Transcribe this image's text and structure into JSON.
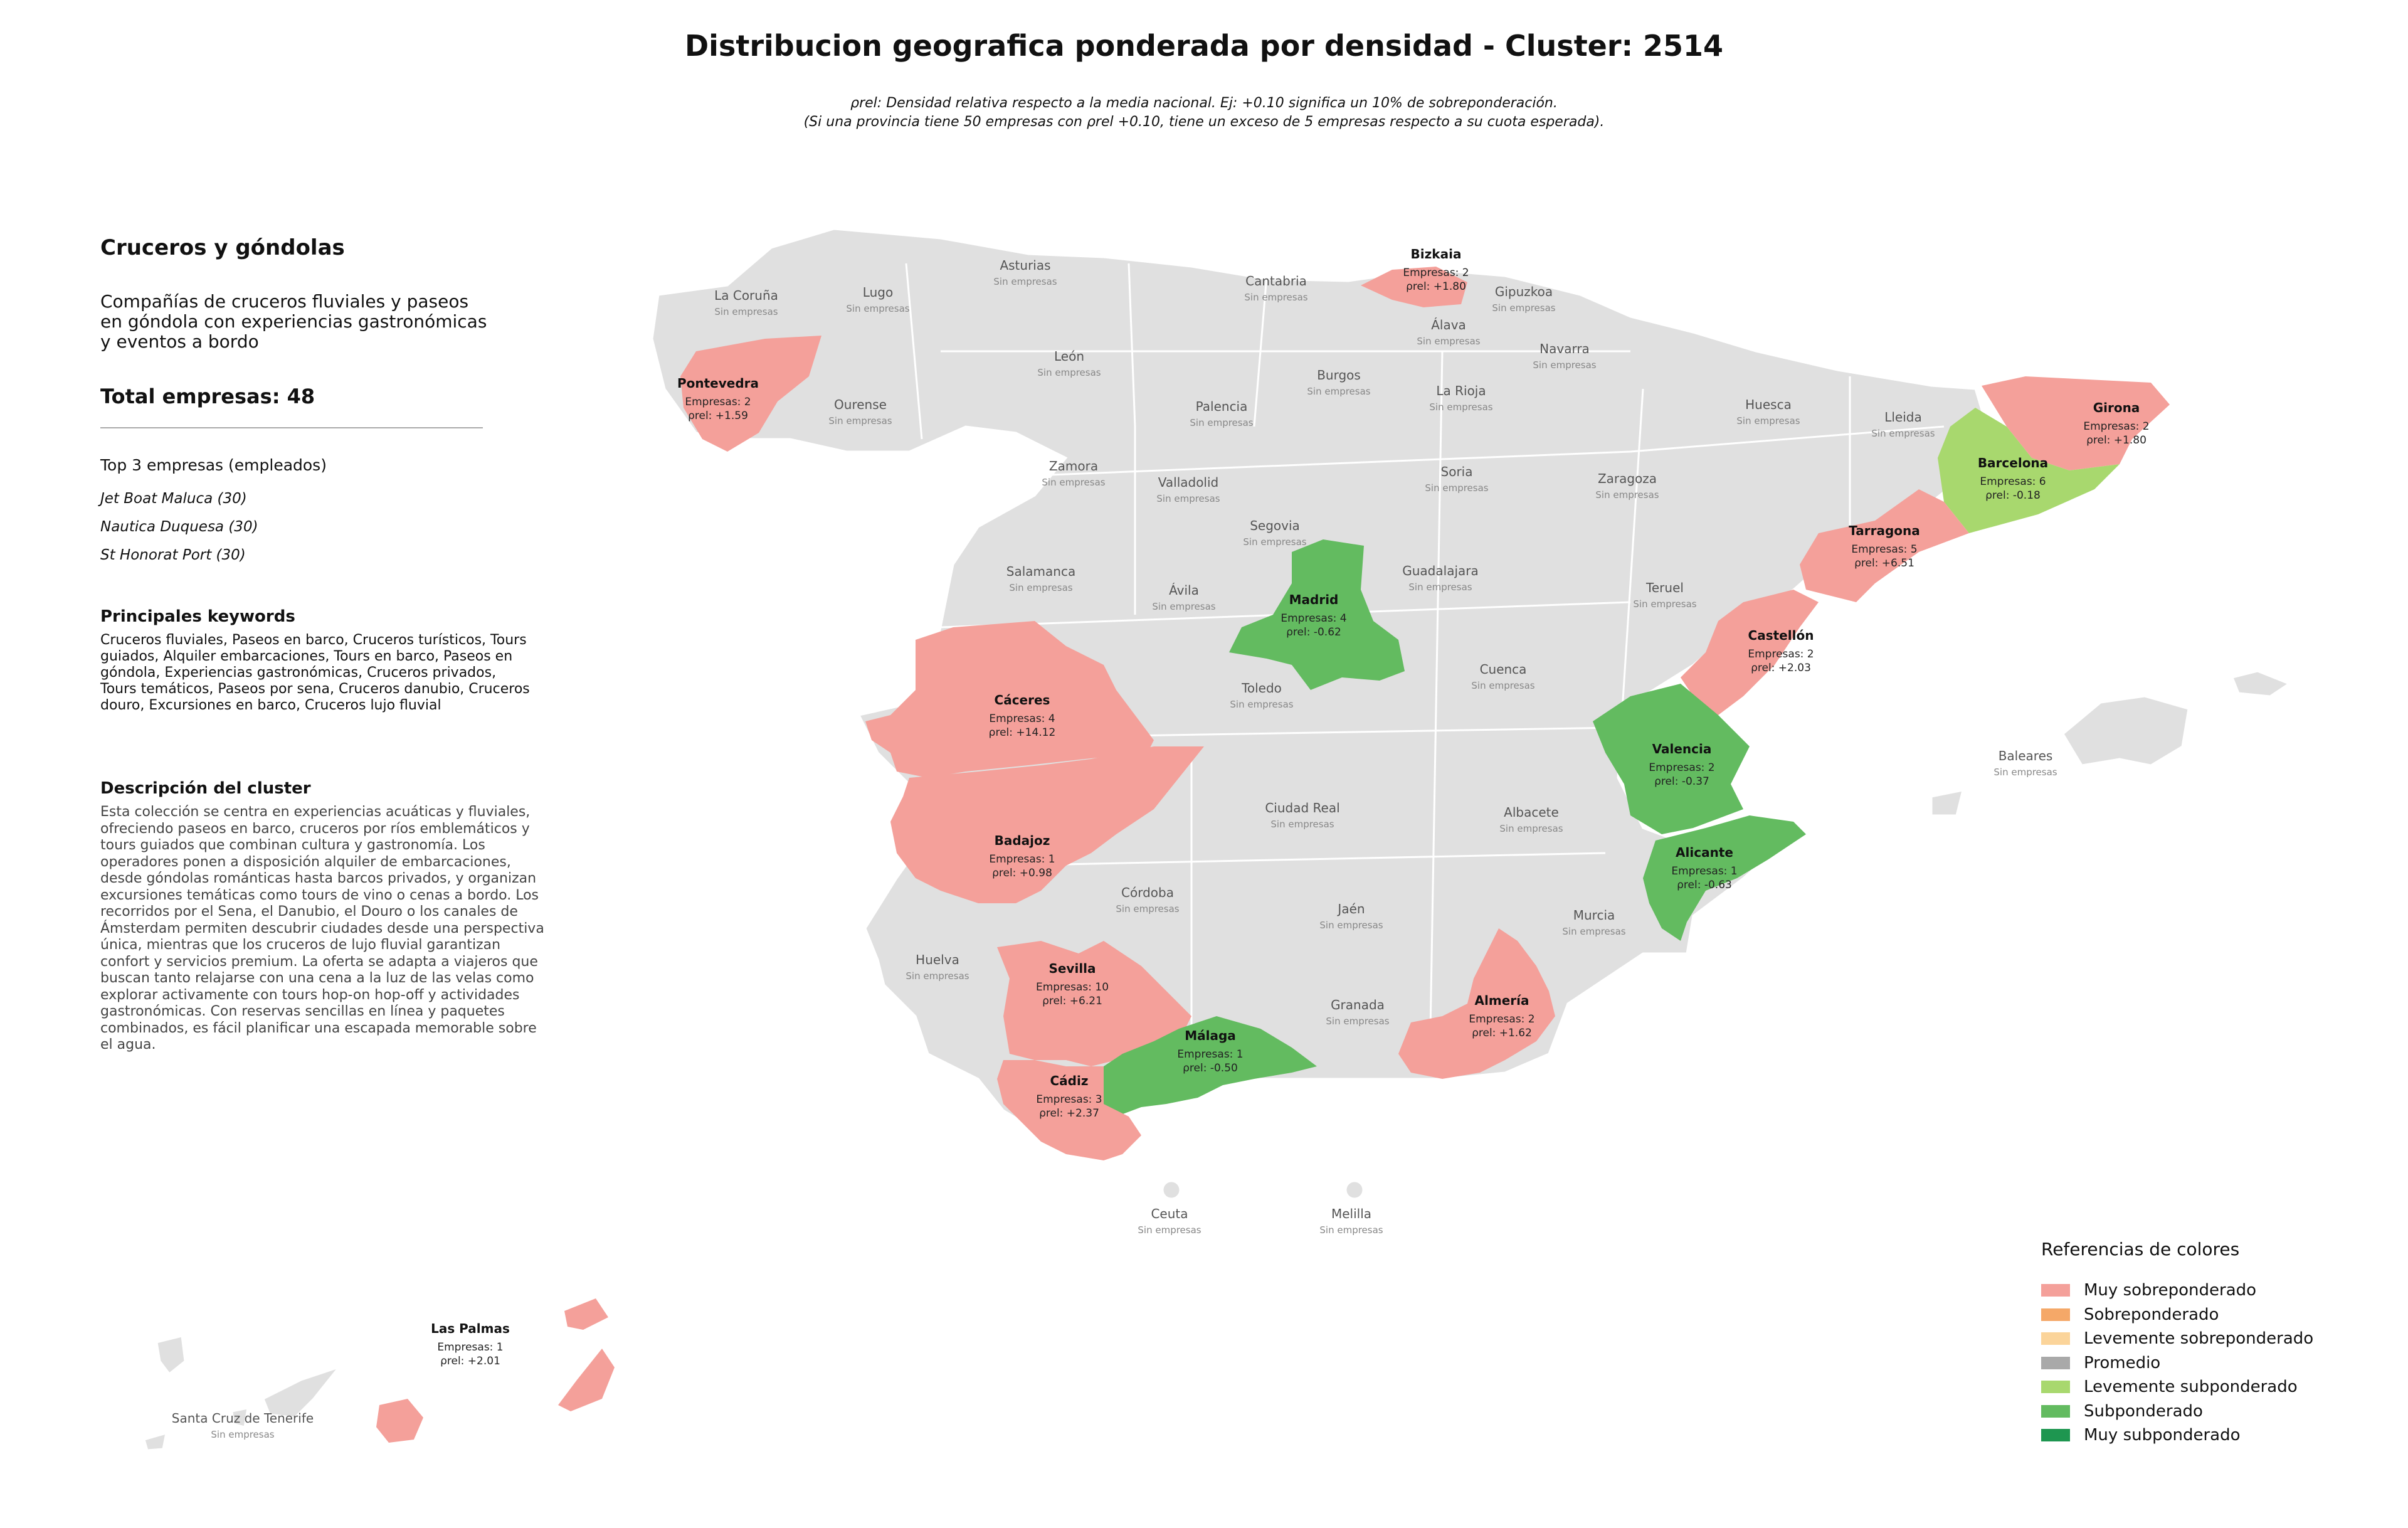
{
  "title": "Distribucion geografica ponderada por densidad - Cluster: 2514",
  "subtitle_line1": "ρrel: Densidad relativa respecto a la media nacional. Ej: +0.10 significa un 10% de sobreponderación.",
  "subtitle_line2": "(Si una provincia tiene 50 empresas con ρrel +0.10, tiene un exceso de 5 empresas respecto a su cuota esperada).",
  "sidebar": {
    "title": "Cruceros y góndolas",
    "description": "Compañías de cruceros fluviales y paseos en góndola con experiencias gastronómicas y eventos a bordo",
    "total": "Total empresas: 48",
    "top3_heading": "Top 3 empresas (empleados)",
    "top3": [
      "Jet Boat Maluca (30)",
      "Nautica Duquesa (30)",
      "St Honorat Port (30)"
    ],
    "keywords_heading": "Principales keywords",
    "keywords": "Cruceros fluviales, Paseos en barco, Cruceros turísticos, Tours guiados, Alquiler embarcaciones, Tours en barco, Paseos en góndola, Experiencias gastronómicas, Cruceros privados, Tours temáticos, Paseos por sena, Cruceros danubio, Cruceros douro, Excursiones en barco, Cruceros lujo fluvial",
    "cluster_desc_heading": "Descripción del cluster",
    "cluster_desc": "Esta colección se centra en experiencias acuáticas y fluviales, ofreciendo paseos en barco, cruceros por ríos emblemáticos y tours guiados que combinan cultura y gastronomía. Los operadores ponen a disposición alquiler de embarcaciones, desde góndolas románticas hasta barcos privados, y organizan excursiones temáticas como tours de vino o cenas a bordo. Los recorridos por el Sena, el Danubio, el Douro o los canales de Ámsterdam permiten descubrir ciudades desde una perspectiva única, mientras que los cruceros de lujo fluvial garantizan confort y servicios premium. La oferta se adapta a viajeros que buscan tanto relajarse con una cena a la luz de las velas como explorar activamente con tours hop-on hop-off y actividades gastronómicas. Con reservas sencillas en línea y paquetes combinados, es fácil planificar una escapada memorable sobre el agua."
  },
  "map": {
    "empty_label": "Sin empresas",
    "provinces_empty": [
      "La Coruña",
      "Lugo",
      "Asturias",
      "Cantabria",
      "Gipuzkoa",
      "Álava",
      "Navarra",
      "León",
      "Burgos",
      "La Rioja",
      "Ourense",
      "Palencia",
      "Huesca",
      "Lleida",
      "Zamora",
      "Valladolid",
      "Soria",
      "Zaragoza",
      "Segovia",
      "Salamanca",
      "Ávila",
      "Guadalajara",
      "Teruel",
      "Toledo",
      "Cuenca",
      "Baleares",
      "Ciudad Real",
      "Albacete",
      "Córdoba",
      "Jaén",
      "Huelva",
      "Murcia",
      "Granada",
      "Ceuta",
      "Melilla",
      "Santa Cruz de Tenerife"
    ],
    "highlighted": [
      {
        "name": "Bizkaia",
        "empresas": "Empresas: 2",
        "rho": "ρrel: +1.80",
        "category": "Muy sobreponderado"
      },
      {
        "name": "Pontevedra",
        "empresas": "Empresas: 2",
        "rho": "ρrel: +1.59",
        "category": "Muy sobreponderado"
      },
      {
        "name": "Girona",
        "empresas": "Empresas: 2",
        "rho": "ρrel: +1.80",
        "category": "Muy sobreponderado"
      },
      {
        "name": "Barcelona",
        "empresas": "Empresas: 6",
        "rho": "ρrel: -0.18",
        "category": "Levemente subponderado"
      },
      {
        "name": "Tarragona",
        "empresas": "Empresas: 5",
        "rho": "ρrel: +6.51",
        "category": "Muy sobreponderado"
      },
      {
        "name": "Madrid",
        "empresas": "Empresas: 4",
        "rho": "ρrel: -0.62",
        "category": "Subponderado"
      },
      {
        "name": "Castellón",
        "empresas": "Empresas: 2",
        "rho": "ρrel: +2.03",
        "category": "Muy sobreponderado"
      },
      {
        "name": "Cáceres",
        "empresas": "Empresas: 4",
        "rho": "ρrel: +14.12",
        "category": "Muy sobreponderado"
      },
      {
        "name": "Valencia",
        "empresas": "Empresas: 2",
        "rho": "ρrel: -0.37",
        "category": "Subponderado"
      },
      {
        "name": "Badajoz",
        "empresas": "Empresas: 1",
        "rho": "ρrel: +0.98",
        "category": "Muy sobreponderado"
      },
      {
        "name": "Alicante",
        "empresas": "Empresas: 1",
        "rho": "ρrel: -0.63",
        "category": "Subponderado"
      },
      {
        "name": "Sevilla",
        "empresas": "Empresas: 10",
        "rho": "ρrel: +6.21",
        "category": "Muy sobreponderado"
      },
      {
        "name": "Almería",
        "empresas": "Empresas: 2",
        "rho": "ρrel: +1.62",
        "category": "Muy sobreponderado"
      },
      {
        "name": "Málaga",
        "empresas": "Empresas: 1",
        "rho": "ρrel: -0.50",
        "category": "Subponderado"
      },
      {
        "name": "Cádiz",
        "empresas": "Empresas: 3",
        "rho": "ρrel: +2.37",
        "category": "Muy sobreponderado"
      },
      {
        "name": "Las Palmas",
        "empresas": "Empresas: 1",
        "rho": "ρrel: +2.01",
        "category": "Muy sobreponderado"
      }
    ]
  },
  "legend": {
    "title": "Referencias de colores",
    "items": [
      {
        "label": "Muy sobreponderado",
        "color": "#f4a09a"
      },
      {
        "label": "Sobreponderado",
        "color": "#f5a868"
      },
      {
        "label": "Levemente sobreponderado",
        "color": "#fbd49a"
      },
      {
        "label": "Promedio",
        "color": "#a9a9a9"
      },
      {
        "label": "Levemente subponderado",
        "color": "#a8d86e"
      },
      {
        "label": "Subponderado",
        "color": "#63bb60"
      },
      {
        "label": "Muy subponderado",
        "color": "#1e9650"
      }
    ]
  }
}
